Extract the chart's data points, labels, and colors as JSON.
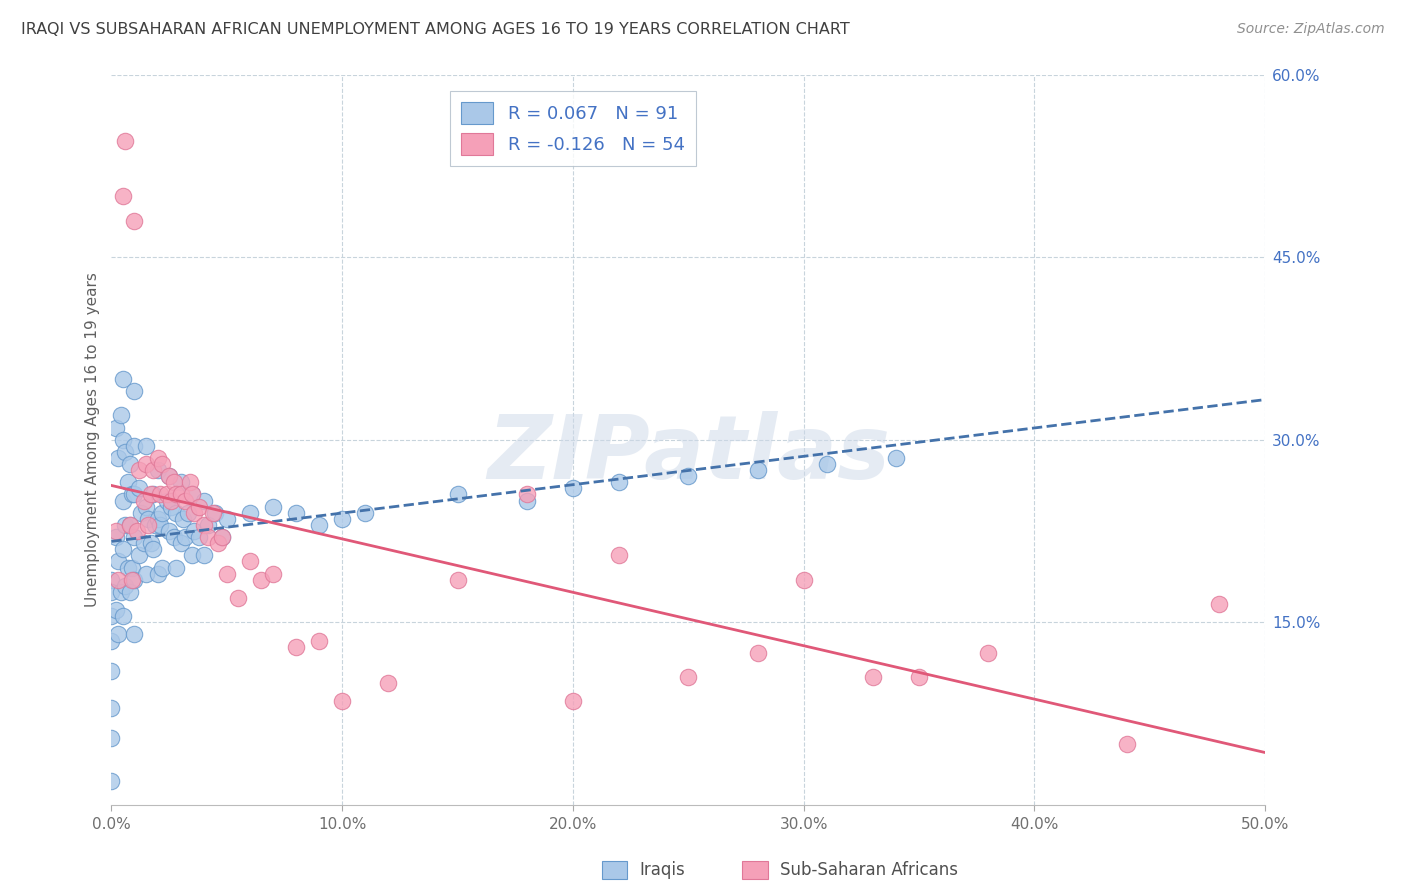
{
  "title": "IRAQI VS SUBSAHARAN AFRICAN UNEMPLOYMENT AMONG AGES 16 TO 19 YEARS CORRELATION CHART",
  "source": "Source: ZipAtlas.com",
  "ylabel": "Unemployment Among Ages 16 to 19 years",
  "xlim": [
    0.0,
    0.5
  ],
  "ylim": [
    0.0,
    0.6
  ],
  "xticks": [
    0.0,
    0.1,
    0.2,
    0.3,
    0.4,
    0.5
  ],
  "xtick_labels": [
    "0.0%",
    "10.0%",
    "20.0%",
    "30.0%",
    "40.0%",
    "50.0%"
  ],
  "yticks_right": [
    0.15,
    0.3,
    0.45,
    0.6
  ],
  "ytick_labels_right": [
    "15.0%",
    "30.0%",
    "45.0%",
    "60.0%"
  ],
  "iraqi_color": "#aac8e8",
  "iraqi_edge_color": "#6699cc",
  "subsaharan_color": "#f5a0b8",
  "subsaharan_edge_color": "#e07898",
  "iraqi_R": 0.067,
  "iraqi_N": 91,
  "subsaharan_R": -0.126,
  "subsaharan_N": 54,
  "trend_iraqi_color": "#4472aa",
  "trend_subsaharan_color": "#e05878",
  "watermark": "ZIPatlas",
  "watermark_color": "#ccd8e8",
  "legend_label_iraqi": "Iraqis",
  "legend_label_subsaharan": "Sub-Saharan Africans",
  "background_color": "#ffffff",
  "grid_color": "#c8d4dc",
  "title_color": "#404040",
  "source_color": "#909090",
  "label_color_blue": "#4472c4",
  "iraqi_x": [
    0.0,
    0.0,
    0.0,
    0.0,
    0.0,
    0.0,
    0.0,
    0.0,
    0.002,
    0.002,
    0.002,
    0.003,
    0.003,
    0.003,
    0.004,
    0.004,
    0.005,
    0.005,
    0.005,
    0.005,
    0.005,
    0.006,
    0.006,
    0.006,
    0.007,
    0.007,
    0.008,
    0.008,
    0.008,
    0.009,
    0.009,
    0.01,
    0.01,
    0.01,
    0.01,
    0.01,
    0.01,
    0.012,
    0.012,
    0.013,
    0.014,
    0.015,
    0.015,
    0.015,
    0.016,
    0.017,
    0.018,
    0.018,
    0.019,
    0.02,
    0.02,
    0.02,
    0.021,
    0.022,
    0.022,
    0.024,
    0.025,
    0.025,
    0.026,
    0.027,
    0.028,
    0.028,
    0.03,
    0.03,
    0.031,
    0.032,
    0.033,
    0.035,
    0.035,
    0.036,
    0.038,
    0.04,
    0.04,
    0.042,
    0.045,
    0.048,
    0.05,
    0.06,
    0.07,
    0.08,
    0.09,
    0.1,
    0.11,
    0.15,
    0.18,
    0.2,
    0.22,
    0.25,
    0.28,
    0.31,
    0.34
  ],
  "iraqi_y": [
    0.185,
    0.175,
    0.155,
    0.135,
    0.11,
    0.08,
    0.055,
    0.02,
    0.31,
    0.22,
    0.16,
    0.285,
    0.2,
    0.14,
    0.32,
    0.175,
    0.35,
    0.3,
    0.25,
    0.21,
    0.155,
    0.29,
    0.23,
    0.18,
    0.265,
    0.195,
    0.28,
    0.23,
    0.175,
    0.255,
    0.195,
    0.34,
    0.295,
    0.255,
    0.22,
    0.185,
    0.14,
    0.26,
    0.205,
    0.24,
    0.215,
    0.295,
    0.245,
    0.19,
    0.235,
    0.215,
    0.255,
    0.21,
    0.23,
    0.275,
    0.235,
    0.19,
    0.23,
    0.24,
    0.195,
    0.25,
    0.27,
    0.225,
    0.245,
    0.22,
    0.24,
    0.195,
    0.265,
    0.215,
    0.235,
    0.22,
    0.24,
    0.255,
    0.205,
    0.225,
    0.22,
    0.25,
    0.205,
    0.23,
    0.24,
    0.22,
    0.235,
    0.24,
    0.245,
    0.24,
    0.23,
    0.235,
    0.24,
    0.255,
    0.25,
    0.26,
    0.265,
    0.27,
    0.275,
    0.28,
    0.285
  ],
  "subsaharan_x": [
    0.002,
    0.003,
    0.005,
    0.006,
    0.008,
    0.009,
    0.01,
    0.011,
    0.012,
    0.014,
    0.015,
    0.016,
    0.017,
    0.018,
    0.02,
    0.021,
    0.022,
    0.024,
    0.025,
    0.026,
    0.027,
    0.028,
    0.03,
    0.032,
    0.034,
    0.035,
    0.036,
    0.038,
    0.04,
    0.042,
    0.044,
    0.046,
    0.048,
    0.05,
    0.055,
    0.06,
    0.065,
    0.07,
    0.08,
    0.09,
    0.1,
    0.12,
    0.15,
    0.18,
    0.2,
    0.22,
    0.25,
    0.28,
    0.3,
    0.33,
    0.35,
    0.38,
    0.44,
    0.48
  ],
  "subsaharan_y": [
    0.225,
    0.185,
    0.5,
    0.545,
    0.23,
    0.185,
    0.48,
    0.225,
    0.275,
    0.25,
    0.28,
    0.23,
    0.255,
    0.275,
    0.285,
    0.255,
    0.28,
    0.255,
    0.27,
    0.25,
    0.265,
    0.255,
    0.255,
    0.25,
    0.265,
    0.255,
    0.24,
    0.245,
    0.23,
    0.22,
    0.24,
    0.215,
    0.22,
    0.19,
    0.17,
    0.2,
    0.185,
    0.19,
    0.13,
    0.135,
    0.085,
    0.1,
    0.185,
    0.255,
    0.085,
    0.205,
    0.105,
    0.125,
    0.185,
    0.105,
    0.105,
    0.125,
    0.05,
    0.165
  ]
}
